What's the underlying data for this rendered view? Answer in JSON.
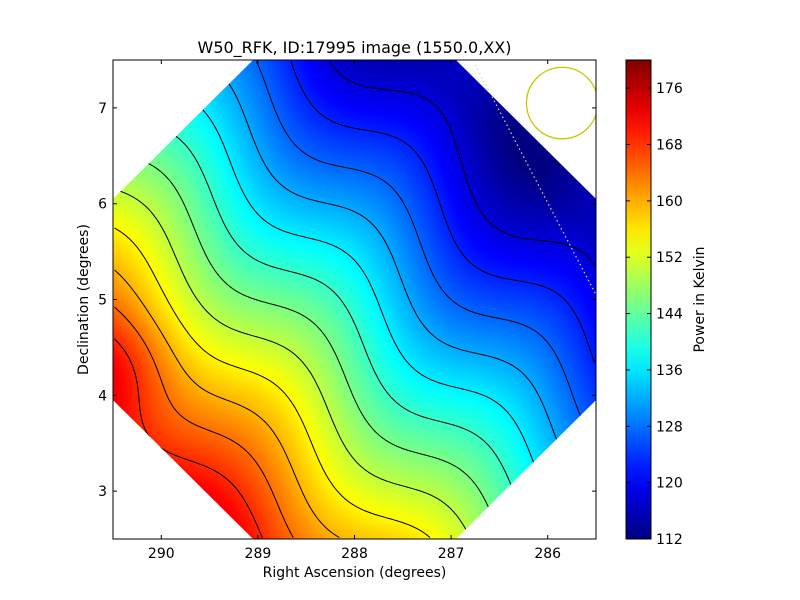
{
  "chart_data": {
    "type": "heatmap",
    "title": "W50_RFK, ID:17995 image (1550.0,XX)",
    "xlabel": "Right Ascension (degrees)",
    "ylabel": "Declination (degrees)",
    "xlim": [
      290.5,
      285.5
    ],
    "ylim": [
      2.5,
      7.5
    ],
    "x_ticks": [
      290,
      289,
      288,
      287,
      286
    ],
    "x_tick_labels": [
      "290",
      "289",
      "288",
      "287",
      "286"
    ],
    "y_ticks": [
      3,
      4,
      5,
      6,
      7
    ],
    "y_tick_labels": [
      "3",
      "4",
      "5",
      "6",
      "7"
    ],
    "colorbar": {
      "label": "Power in Kelvin",
      "range": [
        112,
        180
      ],
      "ticks": [
        112,
        120,
        128,
        136,
        144,
        152,
        160,
        168,
        176
      ],
      "tick_labels": [
        "112",
        "120",
        "128",
        "136",
        "144",
        "152",
        "160",
        "168",
        "176"
      ],
      "colormap": "jet"
    },
    "field": {
      "gradient_direction": "increases toward lower-left (high RA, low Dec)",
      "max_center": [
        290.4,
        4.3
      ],
      "max_value": 180,
      "min_value": 112
    },
    "contours": {
      "count": 13,
      "color": "#000000"
    },
    "footprint": {
      "shape": "diamond",
      "center": [
        288.0,
        5.0
      ],
      "half_diagonal_deg": 3.55
    },
    "annotations": {
      "circle": {
        "center": [
          285.85,
          7.05
        ],
        "radius_deg": 0.37,
        "color": "#c8c800"
      },
      "dotted_line": {
        "points": [
          [
            286.75,
            7.45
          ],
          [
            285.5,
            5.05
          ]
        ],
        "color": "#d8d8a0"
      }
    }
  }
}
